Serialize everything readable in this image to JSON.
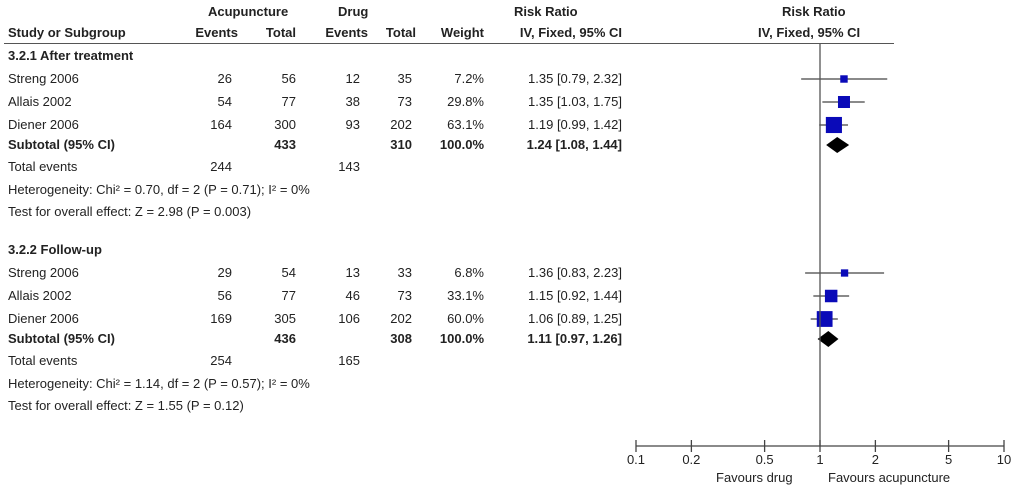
{
  "header": {
    "group1": "Acupuncture",
    "group2": "Drug",
    "rr_title": "Risk Ratio",
    "study_col": "Study or Subgroup",
    "events": "Events",
    "total": "Total",
    "weight": "Weight",
    "method": "IV, Fixed, 95% CI",
    "plot_title": "Risk Ratio",
    "plot_method": "IV, Fixed, 95% CI"
  },
  "chart_data": {
    "type": "forest",
    "scale": "log",
    "xlim": [
      0.1,
      10
    ],
    "ticks": [
      "0.1",
      "0.2",
      "0.5",
      "1",
      "2",
      "5",
      "10"
    ],
    "tick_values": [
      0.1,
      0.2,
      0.5,
      1,
      2,
      5,
      10
    ],
    "xlabel_left": "Favours drug",
    "xlabel_right": "Favours acupuncture",
    "colors": {
      "square": "#0a0ab8",
      "diamond": "#000000",
      "line": "#444444"
    },
    "subgroups": [
      {
        "title": "3.2.1 After treatment",
        "studies": [
          {
            "name": "Streng 2006",
            "ae": "26",
            "at": "56",
            "de": "12",
            "dt": "35",
            "weight": "7.2%",
            "ci": "1.35 [0.79, 2.32]",
            "rr": 1.35,
            "lo": 0.79,
            "hi": 2.32,
            "w": 7.2
          },
          {
            "name": "Allais 2002",
            "ae": "54",
            "at": "77",
            "de": "38",
            "dt": "73",
            "weight": "29.8%",
            "ci": "1.35 [1.03, 1.75]",
            "rr": 1.35,
            "lo": 1.03,
            "hi": 1.75,
            "w": 29.8
          },
          {
            "name": "Diener 2006",
            "ae": "164",
            "at": "300",
            "de": "93",
            "dt": "202",
            "weight": "63.1%",
            "ci": "1.19 [0.99, 1.42]",
            "rr": 1.19,
            "lo": 0.99,
            "hi": 1.42,
            "w": 63.1
          }
        ],
        "subtotal": {
          "label": "Subtotal (95% CI)",
          "at": "433",
          "dt": "310",
          "weight": "100.0%",
          "ci": "1.24 [1.08, 1.44]",
          "rr": 1.24,
          "lo": 1.08,
          "hi": 1.44
        },
        "total_events": {
          "label": "Total events",
          "a": "244",
          "d": "143"
        },
        "heterogeneity": "Heterogeneity: Chi² = 0.70, df = 2 (P = 0.71); I² = 0%",
        "overall": "Test for overall effect: Z = 2.98 (P = 0.003)"
      },
      {
        "title": "3.2.2 Follow-up",
        "studies": [
          {
            "name": "Streng 2006",
            "ae": "29",
            "at": "54",
            "de": "13",
            "dt": "33",
            "weight": "6.8%",
            "ci": "1.36 [0.83, 2.23]",
            "rr": 1.36,
            "lo": 0.83,
            "hi": 2.23,
            "w": 6.8
          },
          {
            "name": "Allais 2002",
            "ae": "56",
            "at": "77",
            "de": "46",
            "dt": "73",
            "weight": "33.1%",
            "ci": "1.15 [0.92, 1.44]",
            "rr": 1.15,
            "lo": 0.92,
            "hi": 1.44,
            "w": 33.1
          },
          {
            "name": "Diener 2006",
            "ae": "169",
            "at": "305",
            "de": "106",
            "dt": "202",
            "weight": "60.0%",
            "ci": "1.06 [0.89, 1.25]",
            "rr": 1.06,
            "lo": 0.89,
            "hi": 1.25,
            "w": 60.0
          }
        ],
        "subtotal": {
          "label": "Subtotal (95% CI)",
          "at": "436",
          "dt": "308",
          "weight": "100.0%",
          "ci": "1.11 [0.97, 1.26]",
          "rr": 1.11,
          "lo": 0.97,
          "hi": 1.26
        },
        "total_events": {
          "label": "Total events",
          "a": "254",
          "d": "165"
        },
        "heterogeneity": "Heterogeneity: Chi² = 1.14, df = 2 (P = 0.57); I² = 0%",
        "overall": "Test for overall effect: Z = 1.55 (P = 0.12)"
      }
    ]
  }
}
